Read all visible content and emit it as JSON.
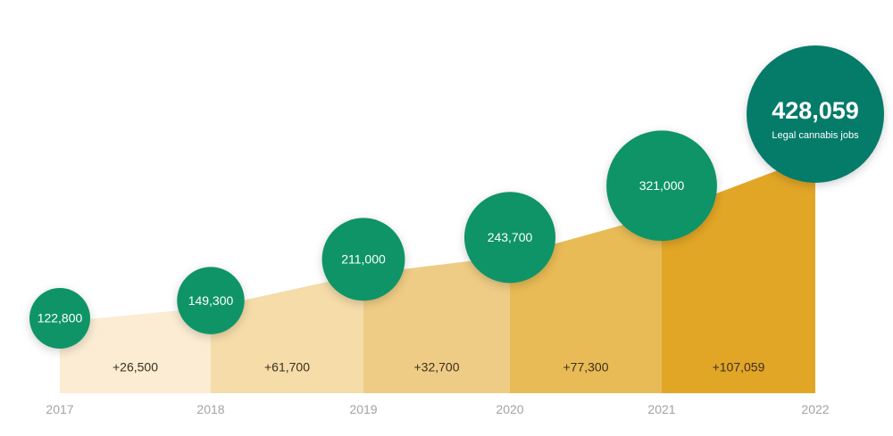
{
  "chart_data": {
    "type": "area",
    "title": "",
    "x": [
      "2017",
      "2018",
      "2019",
      "2020",
      "2021",
      "2022"
    ],
    "values": [
      122800,
      149300,
      211000,
      243700,
      321000,
      428059
    ],
    "value_labels": [
      "122,800",
      "149,300",
      "211,000",
      "243,700",
      "321,000",
      "428,059"
    ],
    "deltas": [
      "+26,500",
      "+61,700",
      "+32,700",
      "+77,300",
      "+107,059"
    ],
    "highlight_caption": "Legal cannabis jobs",
    "segment_colors": [
      "#fbecd3",
      "#f5dca9",
      "#efcc85",
      "#e9bb56",
      "#e2a626"
    ],
    "circle_color": "#0f9467",
    "highlight_circle_color": "#057b69",
    "grid": false,
    "legend": "none"
  }
}
